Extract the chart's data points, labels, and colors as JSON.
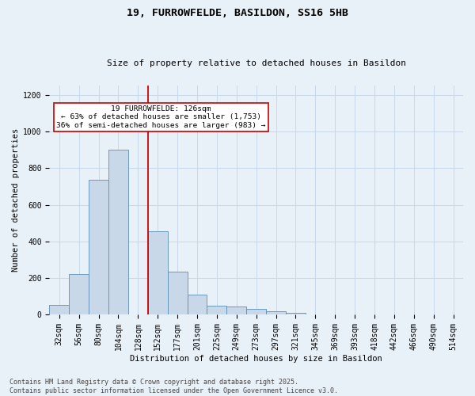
{
  "title1": "19, FURROWFELDE, BASILDON, SS16 5HB",
  "title2": "Size of property relative to detached houses in Basildon",
  "xlabel": "Distribution of detached houses by size in Basildon",
  "ylabel": "Number of detached properties",
  "bin_labels": [
    "32sqm",
    "56sqm",
    "80sqm",
    "104sqm",
    "128sqm",
    "152sqm",
    "177sqm",
    "201sqm",
    "225sqm",
    "249sqm",
    "273sqm",
    "297sqm",
    "321sqm",
    "345sqm",
    "369sqm",
    "393sqm",
    "418sqm",
    "442sqm",
    "466sqm",
    "490sqm",
    "514sqm"
  ],
  "bar_values": [
    50,
    220,
    735,
    900,
    0,
    455,
    235,
    110,
    48,
    45,
    30,
    18,
    10,
    0,
    0,
    0,
    0,
    0,
    0,
    0,
    0
  ],
  "bar_color": "#c8d8e8",
  "bar_edge_color": "#5b8db8",
  "vline_color": "#cc0000",
  "vline_x": 4.5,
  "annotation_text": "19 FURROWFELDE: 126sqm\n← 63% of detached houses are smaller (1,753)\n36% of semi-detached houses are larger (983) →",
  "annotation_box_facecolor": "#ffffff",
  "annotation_box_edgecolor": "#cc0000",
  "ylim": [
    0,
    1250
  ],
  "yticks": [
    0,
    200,
    400,
    600,
    800,
    1000,
    1200
  ],
  "grid_color": "#c8d8e8",
  "background_color": "#e8f0f8",
  "footer1": "Contains HM Land Registry data © Crown copyright and database right 2025.",
  "footer2": "Contains public sector information licensed under the Open Government Licence v3.0.",
  "title1_fontsize": 9.5,
  "title2_fontsize": 8,
  "ylabel_fontsize": 7.5,
  "xlabel_fontsize": 7.5,
  "tick_fontsize": 7,
  "annotation_fontsize": 6.8,
  "footer_fontsize": 6
}
